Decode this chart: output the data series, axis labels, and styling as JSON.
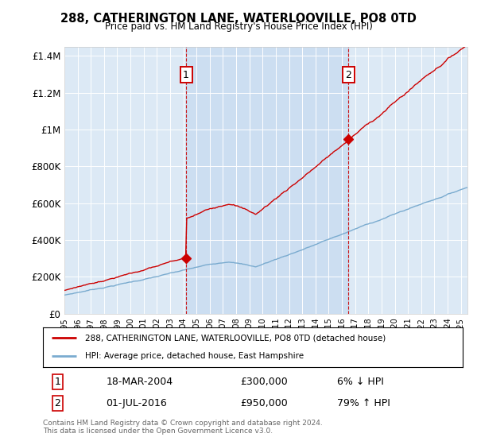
{
  "title": "288, CATHERINGTON LANE, WATERLOOVILLE, PO8 0TD",
  "subtitle": "Price paid vs. HM Land Registry's House Price Index (HPI)",
  "red_line_color": "#cc0000",
  "blue_line_color": "#7aabcf",
  "sale1_year": 2004.21,
  "sale1_price": 300000,
  "sale1_date": "18-MAR-2004",
  "sale1_label": "1",
  "sale2_year": 2016.5,
  "sale2_price": 950000,
  "sale2_date": "01-JUL-2016",
  "sale2_label": "2",
  "xmin": 1995,
  "xmax": 2025.5,
  "ymin": 0,
  "ymax": 1450000,
  "yticks": [
    0,
    200000,
    400000,
    600000,
    800000,
    1000000,
    1200000,
    1400000
  ],
  "ytick_labels": [
    "£0",
    "£200K",
    "£400K",
    "£600K",
    "£800K",
    "£1M",
    "£1.2M",
    "£1.4M"
  ],
  "legend_label_red": "288, CATHERINGTON LANE, WATERLOOVILLE, PO8 0TD (detached house)",
  "legend_label_blue": "HPI: Average price, detached house, East Hampshire",
  "table_row1": [
    "1",
    "18-MAR-2004",
    "£300,000",
    "6% ↓ HPI"
  ],
  "table_row2": [
    "2",
    "01-JUL-2016",
    "£950,000",
    "79% ↑ HPI"
  ],
  "footer": "Contains HM Land Registry data © Crown copyright and database right 2024.\nThis data is licensed under the Open Government Licence v3.0.",
  "plot_bg": "#dce9f5",
  "highlight_bg": "#c8dcf0"
}
